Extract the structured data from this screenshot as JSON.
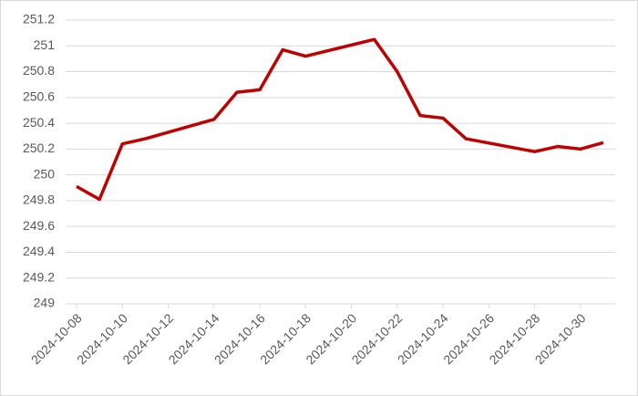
{
  "chart_data": {
    "type": "line",
    "x": [
      "2024-10-08",
      "2024-10-09",
      "2024-10-10",
      "2024-10-11",
      "2024-10-14",
      "2024-10-15",
      "2024-10-16",
      "2024-10-17",
      "2024-10-18",
      "2024-10-21",
      "2024-10-22",
      "2024-10-23",
      "2024-10-24",
      "2024-10-25",
      "2024-10-28",
      "2024-10-29",
      "2024-10-30",
      "2024-10-31"
    ],
    "series": [
      {
        "color": "#c00000",
        "values": [
          249.91,
          249.81,
          250.24,
          250.28,
          250.43,
          250.64,
          250.66,
          250.97,
          250.92,
          251.05,
          250.8,
          250.46,
          250.44,
          250.28,
          250.18,
          250.22,
          250.2,
          250.25
        ]
      }
    ],
    "xlim": [
      "2024-10-08",
      "2024-10-31"
    ],
    "xticks": [
      "2024-10-08",
      "2024-10-10",
      "2024-10-12",
      "2024-10-14",
      "2024-10-16",
      "2024-10-18",
      "2024-10-20",
      "2024-10-22",
      "2024-10-24",
      "2024-10-26",
      "2024-10-28",
      "2024-10-30"
    ],
    "ylim": [
      249,
      251.2
    ],
    "yticks": [
      249,
      249.2,
      249.4,
      249.6,
      249.8,
      250,
      250.2,
      250.4,
      250.6,
      250.8,
      251,
      251.2
    ],
    "grid": true
  }
}
